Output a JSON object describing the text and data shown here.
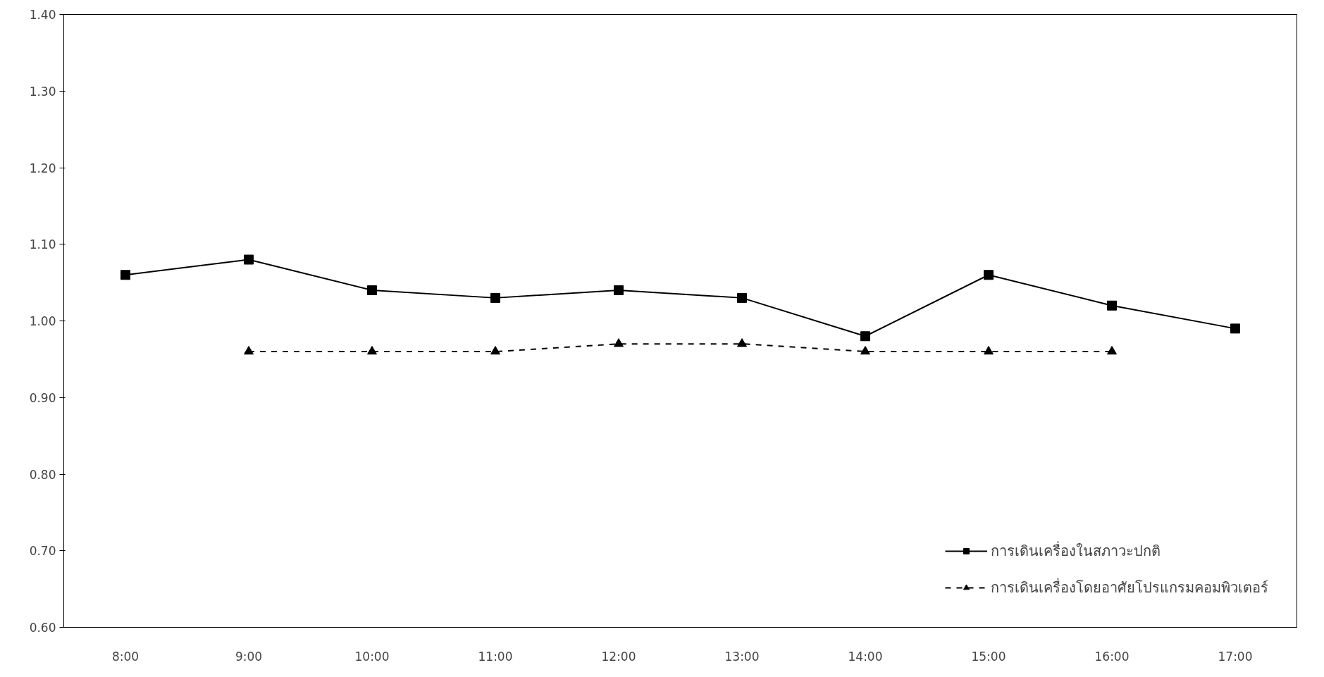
{
  "chart_data": {
    "type": "line",
    "categories": [
      "8:00",
      "9:00",
      "10:00",
      "11:00",
      "12:00",
      "13:00",
      "14:00",
      "15:00",
      "16:00",
      "17:00"
    ],
    "series": [
      {
        "name": "การเดินเครื่องในสภาวะปกติ",
        "color": "#000000",
        "marker": "square",
        "line_style": "solid",
        "values": [
          1.06,
          1.08,
          1.04,
          1.03,
          1.04,
          1.03,
          0.98,
          1.06,
          1.02,
          0.99
        ]
      },
      {
        "name": "การเดินเครื่องโดยอาศัยโปรแกรมคอมพิวเตอร์",
        "color": "#000000",
        "marker": "triangle",
        "line_style": "dashed",
        "values": [
          null,
          0.96,
          0.96,
          0.96,
          0.97,
          0.97,
          0.96,
          0.96,
          0.96,
          null
        ]
      }
    ],
    "ylim": [
      0.6,
      1.4
    ],
    "yticks": [
      {
        "value": 0.6,
        "label": "0.60"
      },
      {
        "value": 0.7,
        "label": "0.70"
      },
      {
        "value": 0.8,
        "label": "0.80"
      },
      {
        "value": 0.9,
        "label": "0.90"
      },
      {
        "value": 1.0,
        "label": "1.00"
      },
      {
        "value": 1.1,
        "label": "1.10"
      },
      {
        "value": 1.2,
        "label": "1.20"
      },
      {
        "value": 1.3,
        "label": "1.30"
      },
      {
        "value": 1.4,
        "label": "1.40"
      }
    ],
    "grid": false,
    "legend": "bottom right"
  }
}
